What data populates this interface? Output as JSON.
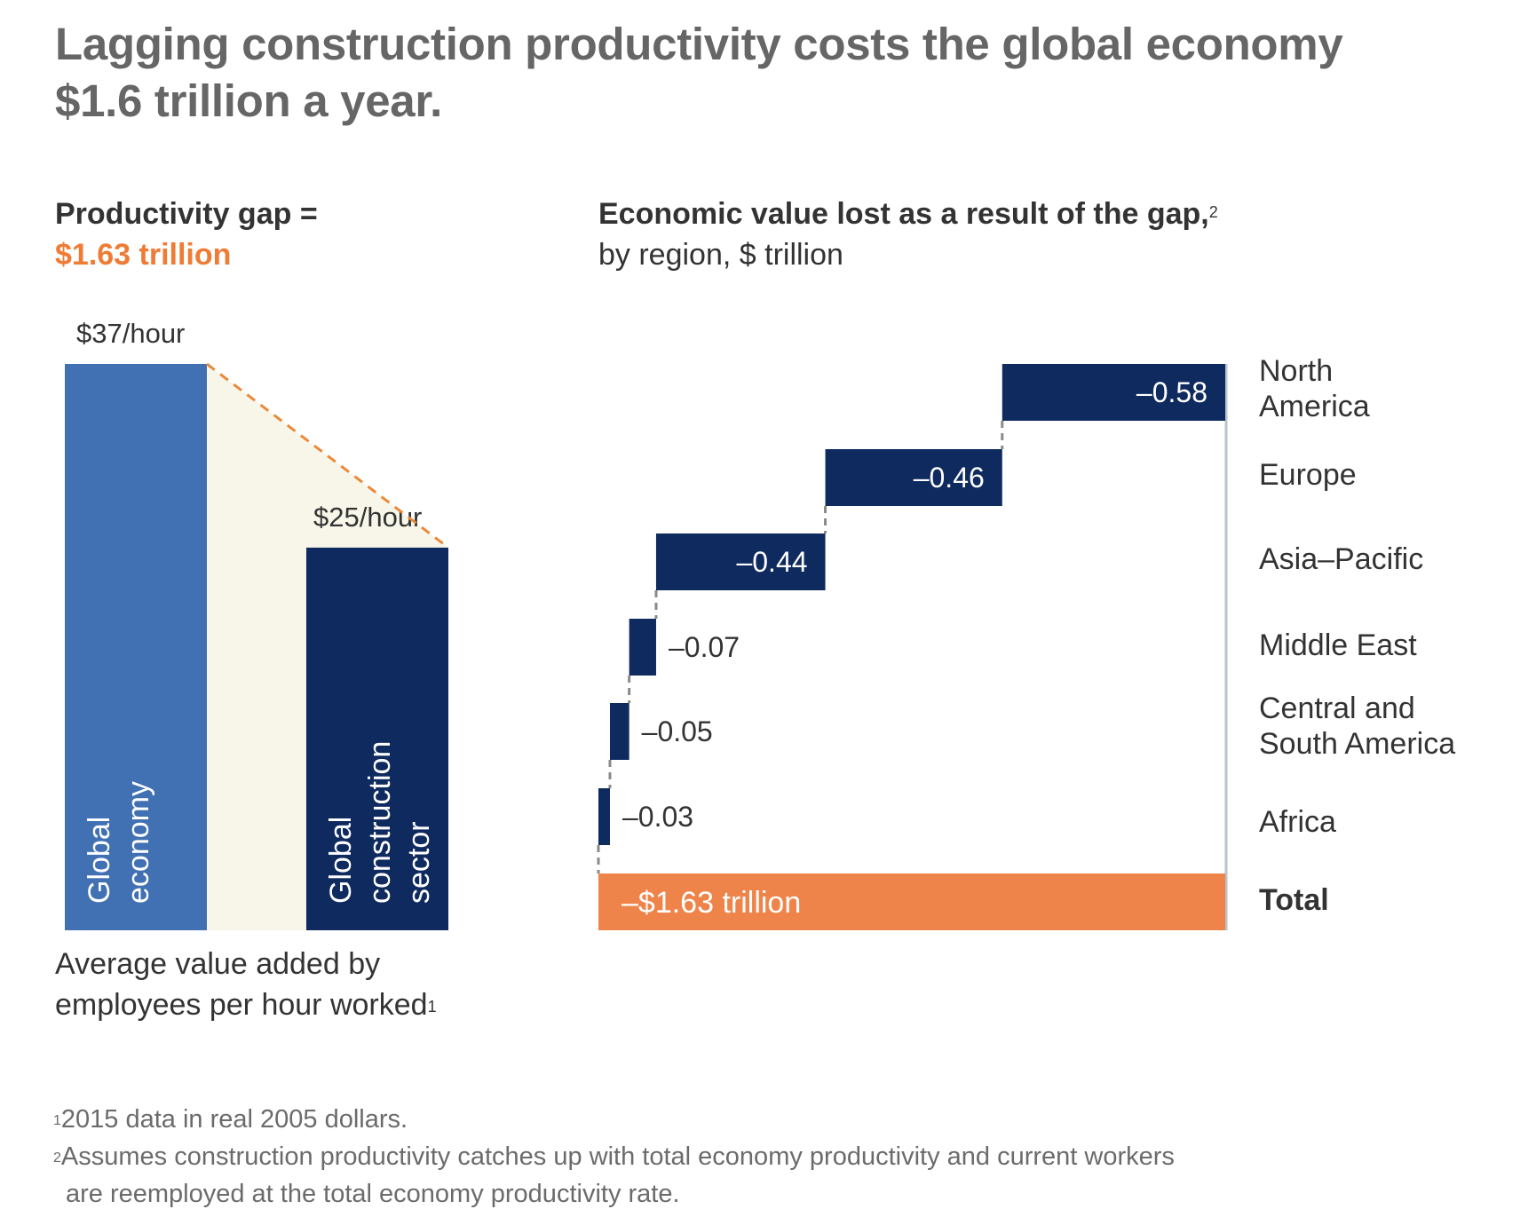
{
  "title": {
    "line1": "Lagging construction productivity costs the global economy",
    "line2": "$1.6 trillion a year."
  },
  "left_panel": {
    "heading": "Productivity gap =",
    "heading_value": "$1.63 trillion",
    "caption_line1": "Average value added by",
    "caption_line2": "employees per hour worked",
    "caption_footnote_ref": "1"
  },
  "right_panel": {
    "heading": "Economic value lost as a result of the gap,",
    "heading_footnote_ref": "2",
    "subheading": "by region, $ trillion"
  },
  "footnotes": [
    {
      "ref": "1",
      "text": "2015 data in real 2005 dollars."
    },
    {
      "ref": "2",
      "text": "Assumes construction productivity catches up with total economy productivity and current workers",
      "text_cont": "are reemployed at the total economy productivity rate."
    }
  ],
  "colors": {
    "global_economy": "#4170b3",
    "construction": "#0f2a5e",
    "gap_fill": "#f8f6e8",
    "accent_orange": "#ef844a",
    "dash_orange": "#e98a3a",
    "connector_gray": "#8a8a8a",
    "axis_gray": "#b9c3cf"
  },
  "chart_data": [
    {
      "type": "bar",
      "title": "Productivity gap = $1.63 trillion",
      "xlabel": "Average value added by employees per hour worked",
      "ylabel": "",
      "unit": "$/hour",
      "categories": [
        "Global economy",
        "Global construction sector"
      ],
      "category_lines": [
        [
          "Global",
          "economy"
        ],
        [
          "Global",
          "construction",
          "sector"
        ]
      ],
      "values": [
        37,
        25
      ],
      "value_labels": [
        "$37/hour",
        "$25/hour"
      ],
      "ylim": [
        0,
        37
      ],
      "grid": false
    },
    {
      "type": "bar",
      "subtype": "waterfall",
      "title": "Economic value lost as a result of the gap, by region, $ trillion",
      "categories": [
        "North America",
        "Europe",
        "Asia–Pacific",
        "Middle East",
        "Central and South America",
        "Africa",
        "Total"
      ],
      "category_lines": [
        [
          "North",
          "America"
        ],
        [
          "Europe"
        ],
        [
          "Asia–Pacific"
        ],
        [
          "Middle East"
        ],
        [
          "Central and",
          "South America"
        ],
        [
          "Africa"
        ],
        [
          "Total"
        ]
      ],
      "values": [
        -0.58,
        -0.46,
        -0.44,
        -0.07,
        -0.05,
        -0.03,
        -1.63
      ],
      "value_labels": [
        "–0.58",
        "–0.46",
        "–0.44",
        "–0.07",
        "–0.05",
        "–0.03",
        "–$1.63 trillion"
      ],
      "xlim": [
        -1.63,
        0
      ],
      "grid": false,
      "legend": "none"
    }
  ]
}
